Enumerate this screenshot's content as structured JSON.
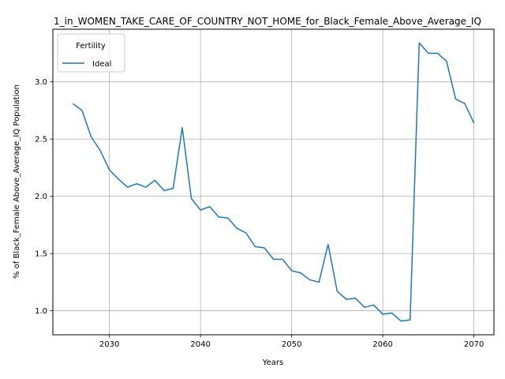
{
  "chart_data": {
    "type": "line",
    "title": "1_in_WOMEN_TAKE_CARE_OF_COUNTRY_NOT_HOME_for_Black_Female_Above_Average_IQ",
    "xlabel": "Years",
    "ylabel": "% of Black_Female Above_Average_IQ Population",
    "xlim": [
      2023.8,
      2072.2
    ],
    "ylim": [
      0.79,
      3.46
    ],
    "xticks": [
      2030,
      2040,
      2050,
      2060,
      2070
    ],
    "yticks": [
      1.0,
      1.5,
      2.0,
      2.5,
      3.0
    ],
    "xtick_labels": [
      "2030",
      "2040",
      "2050",
      "2060",
      "2070"
    ],
    "ytick_labels": [
      "1.0",
      "1.5",
      "2.0",
      "2.5",
      "3.0"
    ],
    "grid": true,
    "legend": {
      "title": "Fertility",
      "placement": "top-left"
    },
    "series": [
      {
        "name": "Ideal",
        "color": "#1f77b4",
        "x": [
          2026,
          2027,
          2028,
          2029,
          2030,
          2031,
          2032,
          2033,
          2034,
          2035,
          2036,
          2037,
          2038,
          2039,
          2040,
          2041,
          2042,
          2043,
          2044,
          2045,
          2046,
          2047,
          2048,
          2049,
          2050,
          2051,
          2052,
          2053,
          2054,
          2055,
          2056,
          2057,
          2058,
          2059,
          2060,
          2061,
          2062,
          2063,
          2064,
          2065,
          2066,
          2067,
          2068,
          2069,
          2070
        ],
        "y": [
          2.81,
          2.75,
          2.52,
          2.4,
          2.23,
          2.15,
          2.08,
          2.11,
          2.08,
          2.14,
          2.05,
          2.07,
          2.6,
          1.98,
          1.88,
          1.91,
          1.82,
          1.81,
          1.72,
          1.68,
          1.56,
          1.55,
          1.45,
          1.45,
          1.35,
          1.33,
          1.27,
          1.25,
          1.58,
          1.17,
          1.1,
          1.11,
          1.03,
          1.05,
          0.97,
          0.98,
          0.91,
          0.92,
          3.34,
          3.25,
          3.25,
          3.18,
          2.85,
          2.81,
          2.64
        ]
      }
    ]
  }
}
